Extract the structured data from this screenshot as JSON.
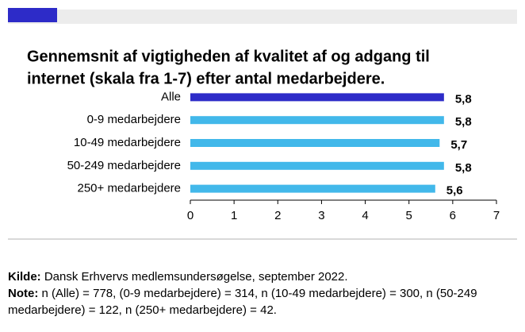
{
  "chart_data": {
    "type": "bar",
    "orientation": "horizontal",
    "title_lines": [
      "Gennemsnit af vigtigheden af kvalitet af og adgang til",
      "internet (skala fra 1-7) efter antal medarbejdere."
    ],
    "categories": [
      "Alle",
      "0-9 medarbejdere",
      "10-49 medarbejdere",
      "50-249 medarbejdere",
      "250+ medarbejdere"
    ],
    "values": [
      5.8,
      5.8,
      5.7,
      5.8,
      5.6
    ],
    "value_labels": [
      "5,8",
      "5,8",
      "5,7",
      "5,8",
      "5,6"
    ],
    "colors": [
      "#2d2bc8",
      "#42b8ea",
      "#42b8ea",
      "#42b8ea",
      "#42b8ea"
    ],
    "xlim": [
      0,
      7
    ],
    "xticks": [
      0,
      1,
      2,
      3,
      4,
      5,
      6,
      7
    ],
    "grid": false
  },
  "footer": {
    "source_label": "Kilde:",
    "source": " Dansk Erhvervs medlemsundersøgelse, september 2022.",
    "note_label": "Note:",
    "note": " n (Alle) = 778, (0-9 medarbejdere) = 314, n (10-49 medarbejdere) = 300, n (50-249 medarbejdere) = 122, n (250+ medarbejdere) = 42."
  }
}
